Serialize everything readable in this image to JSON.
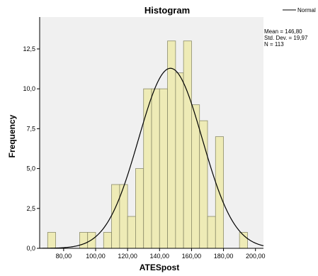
{
  "chart_data": {
    "type": "bar",
    "title": "Histogram",
    "xlabel": "ATESpost",
    "ylabel": "Frequency",
    "bin_width": 5,
    "xlim": [
      65,
      205
    ],
    "ylim": [
      0,
      14.5
    ],
    "x_ticks": [
      80,
      100,
      120,
      140,
      160,
      180,
      200
    ],
    "x_tick_labels": [
      "80,00",
      "100,00",
      "120,00",
      "140,00",
      "160,00",
      "180,00",
      "200,00"
    ],
    "y_ticks": [
      0,
      2.5,
      5,
      7.5,
      10,
      12.5
    ],
    "y_tick_labels": [
      "0,0",
      "2,5",
      "5,0",
      "7,5",
      "10,0",
      "12,5"
    ],
    "bins": [
      {
        "x_start": 70,
        "x_end": 75,
        "count": 1
      },
      {
        "x_start": 90,
        "x_end": 95,
        "count": 1
      },
      {
        "x_start": 95,
        "x_end": 100,
        "count": 1
      },
      {
        "x_start": 105,
        "x_end": 110,
        "count": 1
      },
      {
        "x_start": 110,
        "x_end": 115,
        "count": 4
      },
      {
        "x_start": 115,
        "x_end": 120,
        "count": 4
      },
      {
        "x_start": 120,
        "x_end": 125,
        "count": 2
      },
      {
        "x_start": 125,
        "x_end": 130,
        "count": 5
      },
      {
        "x_start": 130,
        "x_end": 135,
        "count": 10
      },
      {
        "x_start": 135,
        "x_end": 140,
        "count": 10
      },
      {
        "x_start": 140,
        "x_end": 145,
        "count": 10
      },
      {
        "x_start": 145,
        "x_end": 150,
        "count": 13
      },
      {
        "x_start": 150,
        "x_end": 155,
        "count": 11
      },
      {
        "x_start": 155,
        "x_end": 160,
        "count": 13
      },
      {
        "x_start": 160,
        "x_end": 165,
        "count": 9
      },
      {
        "x_start": 165,
        "x_end": 170,
        "count": 8
      },
      {
        "x_start": 170,
        "x_end": 175,
        "count": 2
      },
      {
        "x_start": 175,
        "x_end": 180,
        "count": 7
      },
      {
        "x_start": 190,
        "x_end": 195,
        "count": 1
      }
    ],
    "normal_curve": {
      "mean": 146.8,
      "sd": 19.97,
      "n": 113
    },
    "stats_text": [
      "Mean = 146,80",
      "Std. Dev. = 19,97",
      "N = 113"
    ],
    "legend": [
      {
        "label": "Normal",
        "marker": "line"
      }
    ],
    "legend_position": "top-right",
    "colors": {
      "plot_bg": "#F0F0F0",
      "bar_fill": "#EEEBB6",
      "bar_stroke": "#8C8C6A",
      "curve": "#000000"
    }
  }
}
